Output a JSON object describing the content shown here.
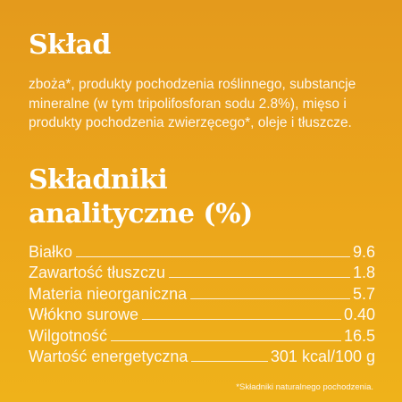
{
  "composition": {
    "title": "Skład",
    "text": "zboża*, produkty pochodzenia roślinnego, substancje mineralne (w tym tripolifosforan sodu 2.8%), mięso i produkty pochodzenia zwierzęcego*, oleje i tłuszcze."
  },
  "analytical": {
    "title_line1": "Składniki",
    "title_line2": "analityczne (%)",
    "rows": [
      {
        "label": "Białko",
        "value": "9.6"
      },
      {
        "label": "Zawartość tłuszczu",
        "value": "1.8"
      },
      {
        "label": "Materia nieorganiczna",
        "value": "5.7"
      },
      {
        "label": "Włókno surowe",
        "value": "0.40"
      },
      {
        "label": "Wilgotność",
        "value": "16.5"
      },
      {
        "label": "Wartość energetyczna",
        "value": "301 kcal/100 g"
      }
    ]
  },
  "footnote": "*Składniki naturalnego pochodzenia."
}
